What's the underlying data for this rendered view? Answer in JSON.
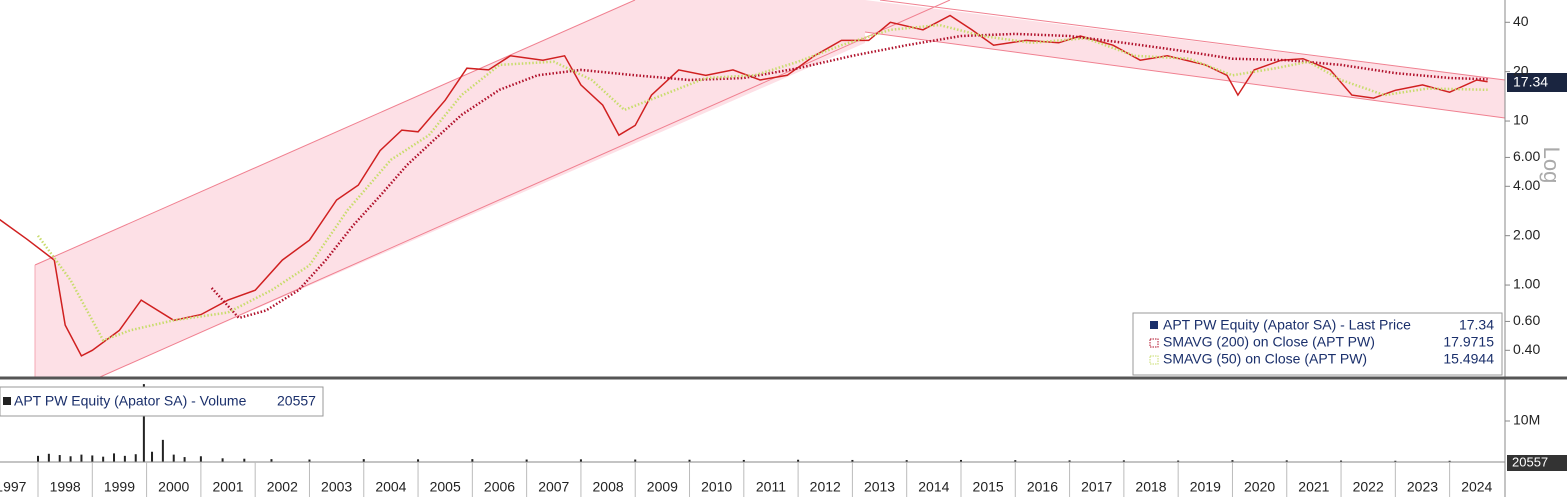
{
  "chart_data": [
    {
      "type": "line",
      "log": true,
      "scale_label": "Log",
      "xlim": [
        1997.3,
        2025.02
      ],
      "xticks": [
        1997,
        1998,
        1999,
        2000,
        2001,
        2002,
        2003,
        2004,
        2005,
        2006,
        2007,
        2008,
        2009,
        2010,
        2011,
        2012,
        2013,
        2014,
        2015,
        2016,
        2017,
        2018,
        2019,
        2020,
        2021,
        2022,
        2023,
        2024
      ],
      "ylim": [
        0.275,
        54.7
      ],
      "yticks": [
        40,
        20,
        10,
        {
          "value": 6,
          "label": "6.00"
        },
        {
          "value": 4,
          "label": "4.00"
        },
        {
          "value": 2,
          "label": "2.00"
        },
        {
          "value": 1,
          "label": "1.00"
        },
        {
          "value": 0.6,
          "label": "0.60"
        },
        {
          "value": 0.4,
          "label": "0.40"
        }
      ],
      "legend_values": [
        "17.34",
        "17.9715",
        "15.4944"
      ],
      "series": [
        {
          "name": "APT PW Equity (Apator SA) - Last Price",
          "color": "#d02020",
          "x": [
            1997.0,
            1997.3,
            1997.8,
            1998.3,
            1998.5,
            1998.8,
            1999.0,
            1999.5,
            1999.9,
            2000.5,
            2001.0,
            2001.5,
            2002.0,
            2002.5,
            2003.0,
            2003.5,
            2003.9,
            2004.3,
            2004.7,
            2005.0,
            2005.5,
            2005.9,
            2006.3,
            2006.7,
            2007.3,
            2007.7,
            2008.0,
            2008.4,
            2008.7,
            2009.0,
            2009.3,
            2009.8,
            2010.3,
            2010.8,
            2011.3,
            2011.8,
            2012.3,
            2012.8,
            2013.3,
            2013.7,
            2014.3,
            2014.8,
            2015.2,
            2015.6,
            2016.2,
            2016.8,
            2017.2,
            2017.8,
            2018.3,
            2018.8,
            2019.5,
            2019.9,
            2020.1,
            2020.4,
            2020.9,
            2021.3,
            2021.8,
            2022.2,
            2022.6,
            2023.0,
            2023.5,
            2024.0,
            2024.5,
            2024.7
          ],
          "values": [
            2.16,
            2.5,
            1.9,
            1.42,
            0.57,
            0.37,
            0.4,
            0.53,
            0.81,
            0.61,
            0.66,
            0.81,
            0.93,
            1.42,
            1.88,
            3.3,
            4.07,
            6.6,
            8.8,
            8.6,
            13.4,
            21,
            20.5,
            25,
            23.5,
            25,
            16.6,
            12.5,
            8.2,
            9.4,
            14.4,
            20.5,
            19,
            20.5,
            17.8,
            19,
            25,
            31,
            31,
            40,
            36,
            44,
            36,
            29,
            31,
            30,
            33,
            29,
            23.5,
            25,
            22,
            19,
            14.4,
            20.5,
            23.5,
            24,
            20.5,
            14.4,
            13.8,
            15.4,
            16.6,
            15,
            17.8,
            17.34
          ]
        },
        {
          "name": "SMAVG (200)  on Close (APT PW)",
          "color": "#b0102a",
          "x": [
            2001.2,
            2001.7,
            2002.2,
            2002.8,
            2003.3,
            2003.8,
            2004.3,
            2004.8,
            2005.3,
            2005.8,
            2006.5,
            2007.2,
            2008.0,
            2009.0,
            2010.0,
            2011.0,
            2012.0,
            2013.0,
            2014.0,
            2015.0,
            2016.0,
            2017.0,
            2018.0,
            2019.0,
            2020.0,
            2021.0,
            2022.0,
            2023.0,
            2024.0,
            2024.7
          ],
          "values": [
            0.96,
            0.63,
            0.7,
            0.93,
            1.42,
            2.3,
            3.5,
            5.4,
            7.7,
            10.9,
            15.5,
            19,
            20.5,
            19,
            17.8,
            18.3,
            21,
            25,
            29,
            33,
            34,
            33,
            30,
            27,
            24,
            23.5,
            22,
            19.6,
            18.3,
            17.9715
          ]
        },
        {
          "name": "SMAVG (50)  on Close (APT PW)",
          "color": "#c8dc6c",
          "x": [
            1998.0,
            1998.6,
            1999.2,
            1999.7,
            2000.5,
            2001.5,
            2002.3,
            2003.0,
            2003.7,
            2004.5,
            2005.2,
            2005.8,
            2006.5,
            2007.5,
            2008.2,
            2008.8,
            2009.5,
            2010.3,
            2011.2,
            2012.0,
            2012.8,
            2013.7,
            2014.6,
            2015.4,
            2016.3,
            2017.3,
            2018.2,
            2019.2,
            2020.0,
            2020.8,
            2021.4,
            2022.0,
            2022.8,
            2023.6,
            2024.7
          ],
          "values": [
            2.0,
            1.07,
            0.46,
            0.53,
            0.61,
            0.68,
            0.93,
            1.32,
            2.86,
            5.8,
            8.2,
            14.4,
            22,
            23,
            17.8,
            11.7,
            14.4,
            18.3,
            19,
            23,
            29,
            36,
            38.5,
            33,
            30,
            32,
            25,
            24,
            19,
            21,
            23,
            17.8,
            14.4,
            15.8,
            15.4944
          ]
        }
      ]
    },
    {
      "type": "bar",
      "legend": "APT PW Equity (Apator SA) - Volume",
      "last_label": "20557",
      "ylim": [
        0,
        20000000
      ],
      "yticks": [
        {
          "value": 10000000,
          "label": "10M"
        }
      ],
      "color": "#222222",
      "x": [
        1998.0,
        1998.2,
        1998.4,
        1998.6,
        1998.8,
        1999.0,
        1999.2,
        1999.4,
        1999.6,
        1999.8,
        1999.95,
        2000.1,
        2000.3,
        2000.5,
        2000.7,
        2001.0,
        2001.4,
        2001.8,
        2002.3,
        2003.0,
        2004.0,
        2005.0,
        2006.0,
        2007.0,
        2008.0,
        2009.0,
        2010.0,
        2011.0,
        2012.0,
        2013.0,
        2014.0,
        2015.0,
        2016.0,
        2017.0,
        2018.0,
        2019.0,
        2020.0,
        2021.0,
        2022.0,
        2023.0,
        2024.0
      ],
      "values": [
        1500000,
        2000000,
        1700000,
        1400000,
        1800000,
        1600000,
        1300000,
        2100000,
        1500000,
        1900000,
        19000000,
        2500000,
        5400000,
        1800000,
        1200000,
        1400000,
        900000,
        800000,
        700000,
        600000,
        700000,
        650000,
        700000,
        600000,
        650000,
        600000,
        550000,
        500000,
        550000,
        500000,
        450000,
        500000,
        450000,
        400000,
        400000,
        350000,
        450000,
        400000,
        350000,
        300000,
        300000
      ]
    }
  ]
}
